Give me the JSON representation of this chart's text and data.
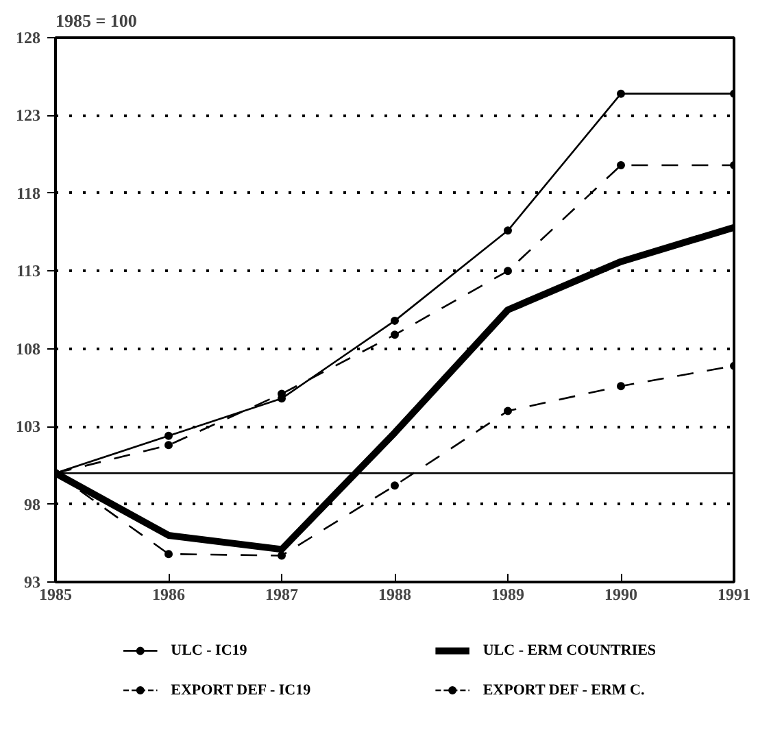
{
  "chart_data": {
    "type": "line",
    "ylabel": "1985 = 100",
    "x": [
      1985,
      1986,
      1987,
      1988,
      1989,
      1990,
      1991
    ],
    "xlim": [
      1985,
      1991
    ],
    "xticks": [
      1985,
      1986,
      1987,
      1988,
      1989,
      1990,
      1991
    ],
    "ylim": [
      93,
      128
    ],
    "yticks": [
      93,
      98,
      103,
      108,
      113,
      118,
      123,
      128
    ],
    "grid": "y",
    "legend": "bottom",
    "series": [
      {
        "name": "ULC - IC19",
        "color": "#000000",
        "marker": "circle",
        "line_style": "solid",
        "values": [
          100,
          102.4,
          104.8,
          109.8,
          115.6,
          124.4,
          124.4
        ]
      },
      {
        "name": "EXPORT DEF - IC19",
        "color": "#000000",
        "marker": "circle",
        "line_style": "dashed",
        "values": [
          100,
          101.8,
          105.1,
          108.9,
          113,
          119.8,
          119.8
        ]
      },
      {
        "name": "ULC - ERM COUNTRIES",
        "color": "#000000",
        "marker": "none",
        "line_style": "solid",
        "values": [
          100,
          96,
          95.1,
          102.6,
          110.5,
          113.6,
          115.8
        ]
      },
      {
        "name": "EXPORT DEF - ERM C.",
        "color": "#000000",
        "marker": "circle",
        "line_style": "dashed",
        "values": [
          100,
          94.8,
          94.7,
          99.2,
          104,
          105.6,
          106.9
        ]
      }
    ],
    "ref_lines": [
      {
        "axis": "y",
        "value": 100,
        "color": "#000000",
        "line_style": "solid"
      }
    ]
  }
}
